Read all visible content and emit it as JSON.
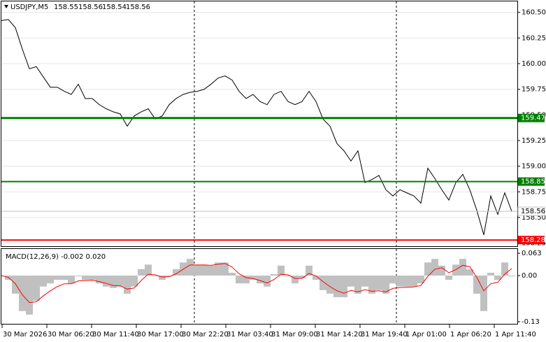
{
  "chart_data": [
    {
      "type": "line",
      "title": "USDJPY,M5",
      "ohlc": [
        158.55,
        158.56,
        158.54,
        158.56
      ],
      "x_labels": [
        "30 Mar 2026",
        "30 Mar 06:20",
        "30 Mar 11:40",
        "30 Mar 17:00",
        "30 Mar 22:20",
        "31 Mar 03:40",
        "31 Mar 09:00",
        "31 Mar 14:20",
        "31 Mar 19:40",
        "1 Apr 01:00",
        "1 Apr 06:20",
        "1 Apr 11:40"
      ],
      "values": [
        160.42,
        160.43,
        160.35,
        160.14,
        159.95,
        159.97,
        159.87,
        159.77,
        159.77,
        159.73,
        159.7,
        159.8,
        159.66,
        159.66,
        159.6,
        159.56,
        159.53,
        159.51,
        159.39,
        159.49,
        159.53,
        159.56,
        159.46,
        159.49,
        159.6,
        159.66,
        159.7,
        159.72,
        159.73,
        159.75,
        159.8,
        159.86,
        159.88,
        159.84,
        159.73,
        159.66,
        159.7,
        159.63,
        159.6,
        159.7,
        159.73,
        159.63,
        159.6,
        159.63,
        159.73,
        159.63,
        159.46,
        159.39,
        159.22,
        159.15,
        159.05,
        159.15,
        158.84,
        158.87,
        158.91,
        158.77,
        158.71,
        158.77,
        158.74,
        158.71,
        158.64,
        158.98,
        158.88,
        158.77,
        158.67,
        158.84,
        158.92,
        158.77,
        158.57,
        158.33,
        158.71,
        158.53,
        158.74,
        158.56
      ],
      "color": "#000000",
      "ylim": [
        158.22,
        160.6
      ],
      "yticks": [
        {
          "value": 160.5,
          "label": "160.50"
        },
        160.25,
        {
          "value": 160,
          "label": "160.00"
        },
        159.75,
        {
          "value": 159.5,
          "label": "159.50"
        },
        159.25,
        {
          "value": 159,
          "label": "159.00"
        },
        158.75,
        {
          "value": 158.5,
          "label": "158.50"
        },
        158.25
      ],
      "levels": [
        {
          "value": 159.47,
          "color": "#008000"
        },
        {
          "value": 158.85,
          "color": "#008000"
        },
        {
          "value": 158.28,
          "color": "#ff0000"
        }
      ],
      "current": {
        "value": 158.56,
        "color": "#c0c0c0"
      },
      "grid": true
    },
    {
      "type": "macd",
      "title": "MACD(12,26,9) -0.002 0.020",
      "series": [
        {
          "type": "bar",
          "color": "#c0c0c0",
          "values": [
            0,
            -0.012,
            -0.051,
            -0.1,
            -0.11,
            -0.071,
            -0.031,
            -0.022,
            -0.012,
            -0.012,
            -0.022,
            -0.002,
            -0.012,
            -0.012,
            -0.022,
            -0.031,
            -0.035,
            -0.031,
            -0.051,
            -0.031,
            0.018,
            0.031,
            -0.002,
            -0.012,
            -0.002,
            0.018,
            0.037,
            0.047,
            0.031,
            0.031,
            0.028,
            0.037,
            0.037,
            0.008,
            -0.022,
            -0.022,
            -0.012,
            -0.022,
            -0.031,
            0.004,
            0.028,
            -0.002,
            -0.022,
            -0.008,
            0.028,
            -0.012,
            -0.041,
            -0.051,
            -0.061,
            -0.061,
            -0.031,
            -0.051,
            -0.031,
            -0.051,
            -0.041,
            -0.051,
            -0.022,
            -0.031,
            -0.031,
            -0.031,
            -0.022,
            0.037,
            0.047,
            0.028,
            -0.012,
            0.031,
            0.047,
            0.018,
            -0.051,
            -0.1,
            0.008,
            -0.012,
            0.037,
            -0.002
          ]
        },
        {
          "type": "line",
          "color": "#ff0000",
          "values": [
            0,
            -0.005,
            -0.023,
            -0.054,
            -0.076,
            -0.074,
            -0.057,
            -0.043,
            -0.031,
            -0.023,
            -0.023,
            -0.015,
            -0.014,
            -0.013,
            -0.017,
            -0.022,
            -0.028,
            -0.029,
            -0.038,
            -0.035,
            -0.014,
            0.004,
            0.002,
            -0.004,
            -0.003,
            0.005,
            0.018,
            0.03,
            0.03,
            0.03,
            0.029,
            0.032,
            0.034,
            0.024,
            0.005,
            -0.006,
            -0.008,
            -0.014,
            -0.021,
            -0.011,
            0.004,
            0.002,
            -0.008,
            -0.008,
            0.006,
            -0.001,
            -0.017,
            -0.031,
            -0.043,
            -0.05,
            -0.042,
            -0.046,
            -0.04,
            -0.044,
            -0.043,
            -0.046,
            -0.036,
            -0.034,
            -0.033,
            -0.032,
            -0.028,
            -0.002,
            0.018,
            0.022,
            0.008,
            0.017,
            0.029,
            0.025,
            -0.005,
            -0.043,
            -0.023,
            -0.019,
            0.004,
            0.02
          ]
        }
      ],
      "ylim": [
        -0.136,
        0.075
      ],
      "yticks": [
        0.063,
        {
          "value": 0,
          "label": "0.00"
        },
        -0.13
      ]
    }
  ]
}
